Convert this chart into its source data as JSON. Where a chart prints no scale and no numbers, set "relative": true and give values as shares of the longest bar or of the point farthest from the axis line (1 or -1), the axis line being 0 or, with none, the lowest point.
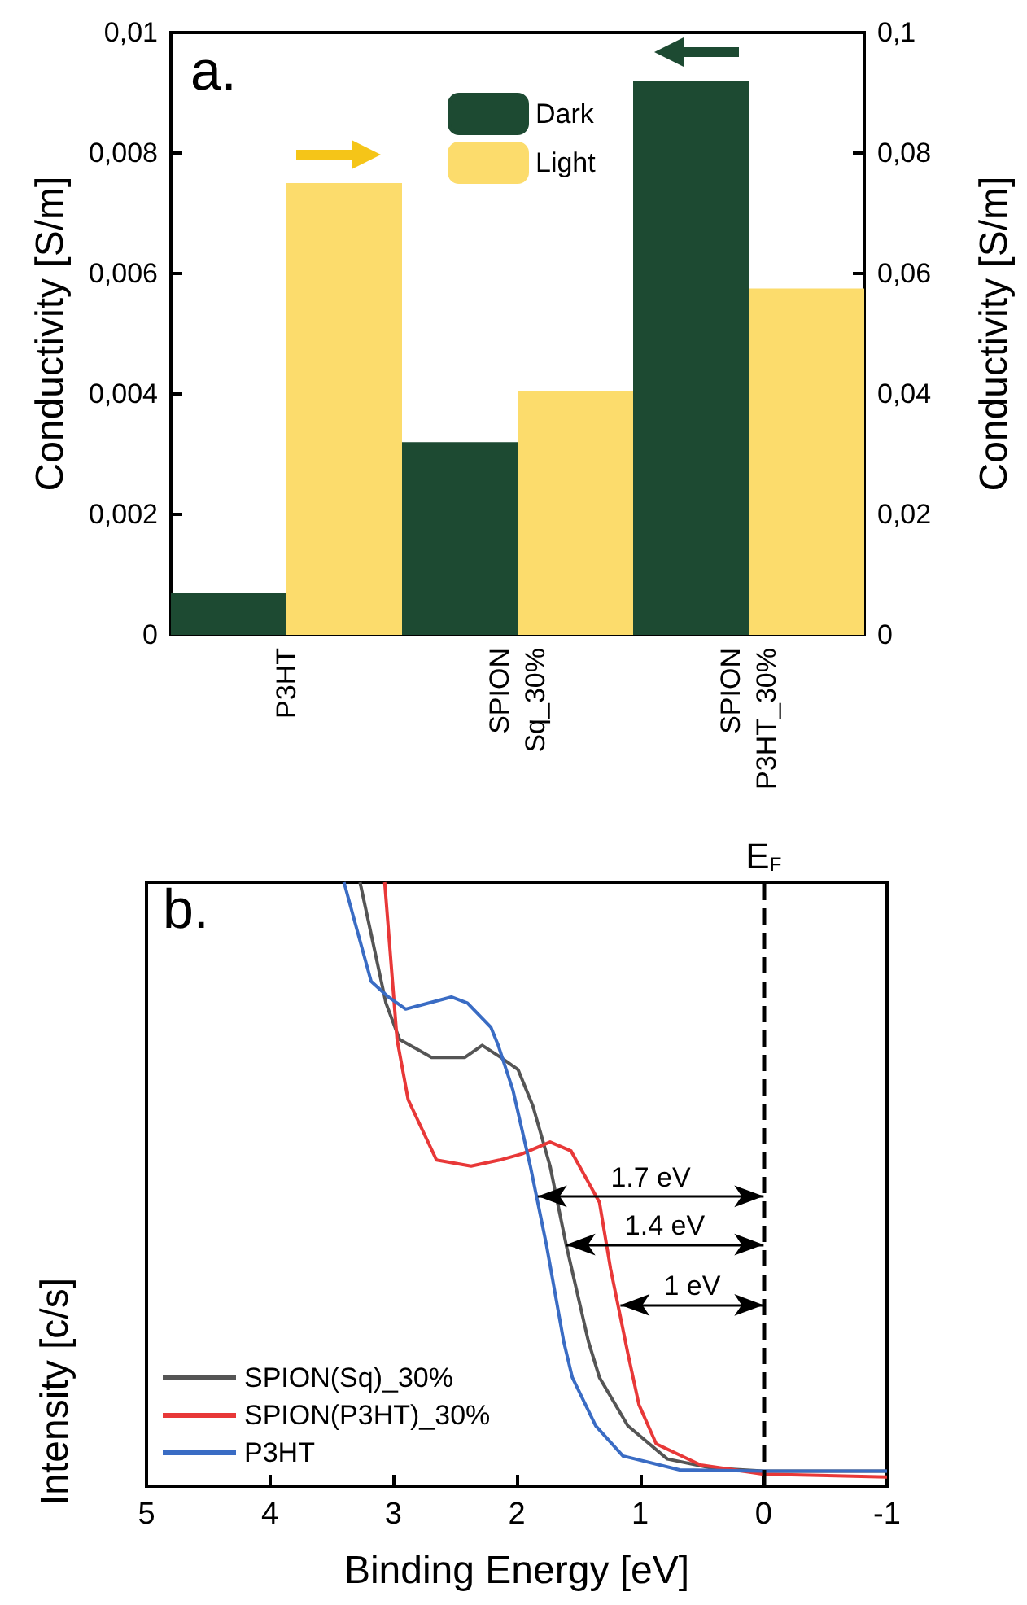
{
  "chart_data": [
    {
      "type": "bar",
      "title": "a.",
      "ylabel": "Conductivity [S/m]",
      "y2label": "Conductivity [S/m]",
      "categories": [
        "P3HT",
        "SPION\nSq_30%",
        "SPION\nP3HT_30%"
      ],
      "series": [
        {
          "name": "Dark",
          "color": "#1d4a32",
          "values": [
            0.0007,
            0.0032,
            0.0092
          ]
        },
        {
          "name": "Light",
          "color": "#fcdc6c",
          "axis": "y2",
          "values": [
            0.075,
            0.0405,
            0.0575
          ]
        }
      ],
      "ylim": [
        0,
        0.01
      ],
      "yticks": [
        0,
        {
          "value": 0.002,
          "label": "0,002"
        },
        {
          "value": 0.004,
          "label": "0,004"
        },
        {
          "value": 0.006,
          "label": "0,006"
        },
        {
          "value": 0.008,
          "label": "0,008"
        },
        {
          "value": 0.01,
          "label": "0,01"
        }
      ],
      "y2lim": [
        0,
        0.1
      ],
      "y2ticks": [
        0,
        {
          "value": 0.02,
          "label": "0,02"
        },
        {
          "value": 0.04,
          "label": "0,04"
        },
        {
          "value": 0.06,
          "label": "0,06"
        },
        {
          "value": 0.08,
          "label": "0,08"
        },
        {
          "value": 0.1,
          "label": "0,1"
        }
      ],
      "legend": "top",
      "grid": false
    },
    {
      "type": "line",
      "title": "b.",
      "xlabel": "Binding Energy [eV]",
      "ylabel": "Intensity [c/s]",
      "relative": true,
      "xlim": [
        5,
        -1
      ],
      "xticks": [
        5,
        4,
        3,
        2,
        1,
        0,
        -1
      ],
      "series": [
        {
          "name": "SPION(Sq)_30%",
          "color": "#555555",
          "x": [
            3.27,
            3.06,
            2.95,
            2.69,
            2.42,
            2.28,
            2.13,
            1.99,
            1.87,
            1.73,
            1.6,
            1.42,
            1.33,
            1.1,
            0.78,
            0.42,
            0,
            -1
          ],
          "values": [
            1,
            0.8,
            0.74,
            0.71,
            0.71,
            0.73,
            0.71,
            0.69,
            0.63,
            0.53,
            0.4,
            0.24,
            0.18,
            0.1,
            0.045,
            0.03,
            0.025,
            0.025
          ]
        },
        {
          "name": "SPION(P3HT)_30%",
          "color": "#e83838",
          "x": [
            3.07,
            2.97,
            2.88,
            2.65,
            2.37,
            2.14,
            1.96,
            1.73,
            1.56,
            1.33,
            1.24,
            1.1,
            1.01,
            0.87,
            0.51,
            0,
            -1
          ],
          "values": [
            1,
            0.74,
            0.64,
            0.54,
            0.53,
            0.54,
            0.55,
            0.57,
            0.555,
            0.47,
            0.36,
            0.22,
            0.135,
            0.07,
            0.035,
            0.02,
            0.015
          ]
        },
        {
          "name": "P3HT",
          "color": "#3a6cc4",
          "x": [
            3.4,
            3.18,
            3.04,
            2.9,
            2.53,
            2.4,
            2.21,
            2.15,
            2.03,
            1.89,
            1.76,
            1.62,
            1.55,
            1.36,
            1.14,
            0.68,
            0,
            -1
          ],
          "values": [
            1,
            0.836,
            0.81,
            0.79,
            0.81,
            0.8,
            0.76,
            0.73,
            0.655,
            0.53,
            0.4,
            0.24,
            0.18,
            0.1,
            0.05,
            0.027,
            0.025,
            0.025
          ]
        }
      ],
      "ref_lines": [
        {
          "axis": "x",
          "value": 0,
          "label": "E$_{F}$",
          "line_style": "dashed"
        }
      ],
      "annotations": [
        {
          "text": "1.7 eV",
          "x": 1.83,
          "y": 0.48
        },
        {
          "text": "1.4 eV",
          "x": 1.6,
          "y": 0.4
        },
        {
          "text": "1 eV",
          "x": 1.16,
          "y": 0.3
        }
      ],
      "legend": "bottom left",
      "grid": false
    }
  ]
}
